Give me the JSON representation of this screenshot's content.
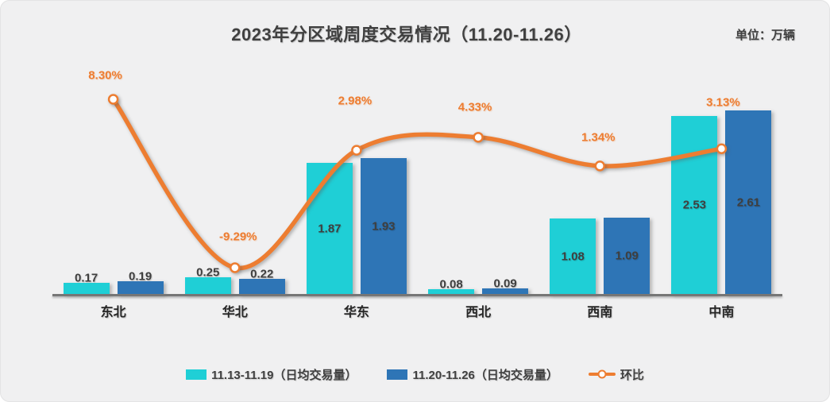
{
  "header": {
    "title": "2023年分区域周度交易情况（11.20-11.26）",
    "unit_label": "单位：万辆"
  },
  "colors": {
    "series1_cyan": "#1FCFD6",
    "series2_blue": "#2E75B6",
    "line_orange": "#ED7D31",
    "text_dark": "#404040",
    "card_background": "#F0F0F1",
    "axis_gray": "#767676"
  },
  "chart_data": {
    "type": "bar",
    "subtype": "grouped bars with overlaid smooth line (combo chart)",
    "title": "2023年分区域周度交易情况（11.20-11.26）",
    "unit": "万辆",
    "categories": [
      "东北",
      "华北",
      "华东",
      "西北",
      "西南",
      "中南"
    ],
    "series": [
      {
        "name": "11.13-11.19（日均交易量）",
        "type": "bar",
        "color": "#1FCFD6",
        "values": [
          0.17,
          0.25,
          1.87,
          0.08,
          1.08,
          2.53
        ],
        "value_labels": [
          "0.17",
          "0.25",
          "1.87",
          "0.08",
          "1.08",
          "2.53"
        ]
      },
      {
        "name": "11.20-11.26（日均交易量）",
        "type": "bar",
        "color": "#2E75B6",
        "values": [
          0.19,
          0.22,
          1.93,
          0.09,
          1.09,
          2.61
        ],
        "value_labels": [
          "0.19",
          "0.22",
          "1.93",
          "0.09",
          "1.09",
          "2.61"
        ]
      },
      {
        "name": "环比",
        "type": "line",
        "color": "#ED7D31",
        "values": [
          8.3,
          -9.29,
          2.98,
          4.33,
          1.34,
          3.13
        ],
        "value_labels": [
          "8.30%",
          "-9.29%",
          "2.98%",
          "4.33%",
          "1.34%",
          "3.13%"
        ]
      }
    ],
    "legend_position": "bottom",
    "grid": false,
    "value_labels_shown": true,
    "axis_ticks_shown": false
  }
}
